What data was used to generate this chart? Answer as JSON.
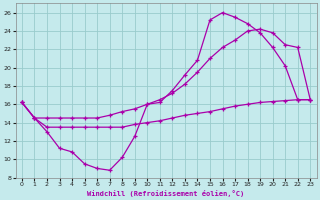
{
  "xlabel": "Windchill (Refroidissement éolien,°C)",
  "bg_color": "#c5eaec",
  "line_color": "#aa00aa",
  "grid_color": "#99cccc",
  "xlim": [
    -0.5,
    23.5
  ],
  "ylim": [
    8,
    27
  ],
  "xticks": [
    0,
    1,
    2,
    3,
    4,
    5,
    6,
    7,
    8,
    9,
    10,
    11,
    12,
    13,
    14,
    15,
    16,
    17,
    18,
    19,
    20,
    21,
    22,
    23
  ],
  "yticks": [
    8,
    10,
    12,
    14,
    16,
    18,
    20,
    22,
    24,
    26
  ],
  "curve1_x": [
    0,
    1,
    2,
    3,
    4,
    5,
    6,
    7,
    8,
    9,
    10,
    11,
    12,
    13,
    14,
    15,
    16,
    17,
    18,
    19,
    20,
    21,
    22,
    23
  ],
  "curve1_y": [
    16.2,
    14.5,
    13.0,
    11.2,
    10.8,
    9.5,
    9.0,
    8.8,
    10.2,
    12.5,
    16.0,
    16.2,
    17.5,
    19.2,
    20.8,
    25.2,
    26.0,
    25.5,
    24.8,
    23.8,
    22.2,
    20.2,
    16.5,
    16.5
  ],
  "curve2_x": [
    0,
    1,
    2,
    3,
    4,
    5,
    6,
    7,
    8,
    9,
    10,
    11,
    12,
    13,
    14,
    15,
    16,
    17,
    18,
    19,
    20,
    21,
    22,
    23
  ],
  "curve2_y": [
    16.2,
    14.5,
    14.5,
    14.5,
    14.5,
    14.5,
    14.5,
    14.8,
    15.2,
    15.5,
    16.0,
    16.5,
    17.2,
    18.2,
    19.5,
    21.0,
    22.2,
    23.0,
    24.0,
    24.2,
    23.8,
    22.5,
    22.2,
    16.5
  ],
  "curve3_x": [
    0,
    1,
    2,
    3,
    4,
    5,
    6,
    7,
    8,
    9,
    10,
    11,
    12,
    13,
    14,
    15,
    16,
    17,
    18,
    19,
    20,
    21,
    22,
    23
  ],
  "curve3_y": [
    16.2,
    14.5,
    13.5,
    13.5,
    13.5,
    13.5,
    13.5,
    13.5,
    13.5,
    13.8,
    14.0,
    14.2,
    14.5,
    14.8,
    15.0,
    15.2,
    15.5,
    15.8,
    16.0,
    16.2,
    16.3,
    16.4,
    16.5,
    16.5
  ]
}
